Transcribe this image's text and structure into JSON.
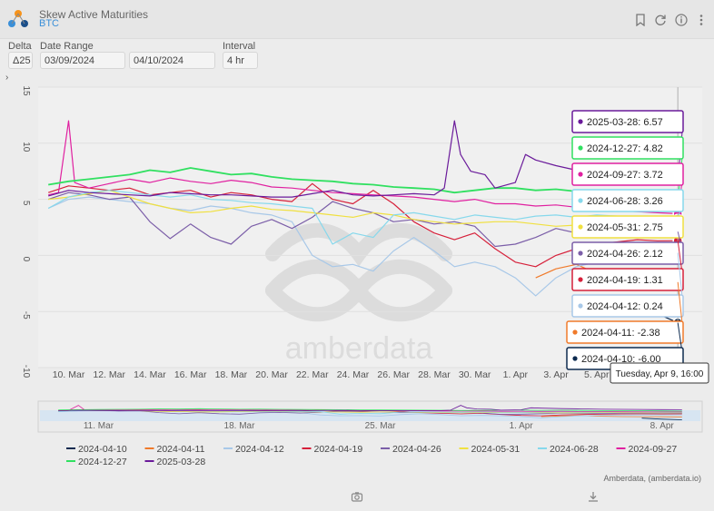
{
  "header": {
    "title": "Skew Active Maturities",
    "subtitle": "BTC"
  },
  "controls": {
    "delta_label": "Delta",
    "delta_value": "Δ25",
    "date_range_label": "Date Range",
    "start_date": "03/09/2024",
    "end_date": "04/10/2024",
    "interval_label": "Interval",
    "interval_value": "4 hr"
  },
  "footer": {
    "credit": "Amberdata, (amberdata.io)"
  },
  "watermark": "amberdata",
  "tooltip_time": "Tuesday, Apr 9, 16:00",
  "colors": {
    "2024-04-10": "#0d2a4f",
    "2024-04-11": "#f07a2a",
    "2024-04-12": "#a8c8e8",
    "2024-04-19": "#d6203a",
    "2024-04-26": "#7b5ea8",
    "2024-05-31": "#f0e040",
    "2024-06-28": "#86d8ec",
    "2024-09-27": "#e020a0",
    "2024-12-27": "#30e060",
    "2025-03-28": "#6a1a9a"
  },
  "chart_data": {
    "type": "line",
    "title": "",
    "xlabel": "",
    "ylabel": "",
    "ylim": [
      -10,
      15
    ],
    "yticks": [
      "15",
      "10",
      "5",
      "0",
      "-5",
      "-10"
    ],
    "xticks": [
      "10. Mar",
      "12. Mar",
      "14. Mar",
      "16. Mar",
      "18. Mar",
      "20. Mar",
      "22. Mar",
      "24. Mar",
      "26. Mar",
      "28. Mar",
      "30. Mar",
      "1. Apr",
      "3. Apr",
      "5. Apr"
    ],
    "navigator_ticks": [
      "11. Mar",
      "18. Mar",
      "25. Mar",
      "1. Apr",
      "8. Apr"
    ],
    "legend_position": "bottom",
    "series": [
      {
        "name": "2025-03-28",
        "color": "#6a1a9a",
        "last": 6.57,
        "label": "2025-03-28: 6.57",
        "points": [
          [
            9,
            5.3
          ],
          [
            10,
            5.8
          ],
          [
            11,
            5.6
          ],
          [
            12,
            5.5
          ],
          [
            13,
            5.4
          ],
          [
            14,
            5.3
          ],
          [
            15,
            5.6
          ],
          [
            16,
            5.5
          ],
          [
            17,
            5.4
          ],
          [
            18,
            5.4
          ],
          [
            19,
            5.3
          ],
          [
            20,
            5.2
          ],
          [
            21,
            5.2
          ],
          [
            22,
            5.5
          ],
          [
            23,
            5.8
          ],
          [
            24,
            5.4
          ],
          [
            25,
            5.3
          ],
          [
            26,
            5.4
          ],
          [
            27,
            5.5
          ],
          [
            28,
            5.4
          ],
          [
            28.5,
            6.0
          ],
          [
            29,
            12.0
          ],
          [
            29.3,
            9.0
          ],
          [
            29.8,
            7.5
          ],
          [
            30.5,
            7.2
          ],
          [
            31,
            6.0
          ],
          [
            32,
            6.5
          ],
          [
            32.5,
            9.0
          ],
          [
            33,
            8.5
          ],
          [
            34,
            8.0
          ],
          [
            35,
            7.6
          ],
          [
            36,
            7.2
          ],
          [
            37,
            7.0
          ],
          [
            38,
            6.9
          ],
          [
            39,
            6.7
          ],
          [
            40,
            6.57
          ]
        ]
      },
      {
        "name": "2024-12-27",
        "color": "#30e060",
        "last": 4.82,
        "label": "2024-12-27: 4.82",
        "points": [
          [
            9,
            6.3
          ],
          [
            10,
            6.6
          ],
          [
            11,
            6.8
          ],
          [
            12,
            7.0
          ],
          [
            13,
            7.2
          ],
          [
            14,
            7.6
          ],
          [
            15,
            7.4
          ],
          [
            16,
            7.8
          ],
          [
            17,
            7.5
          ],
          [
            18,
            7.2
          ],
          [
            19,
            7.3
          ],
          [
            20,
            7.0
          ],
          [
            21,
            6.8
          ],
          [
            22,
            6.7
          ],
          [
            23,
            6.6
          ],
          [
            24,
            6.4
          ],
          [
            25,
            6.3
          ],
          [
            26,
            6.1
          ],
          [
            27,
            6.0
          ],
          [
            28,
            5.9
          ],
          [
            29,
            5.6
          ],
          [
            30,
            5.8
          ],
          [
            31,
            6.0
          ],
          [
            32,
            6.0
          ],
          [
            33,
            5.8
          ],
          [
            34,
            5.9
          ],
          [
            35,
            5.7
          ],
          [
            36,
            5.5
          ],
          [
            37,
            5.4
          ],
          [
            38,
            5.3
          ],
          [
            39,
            5.0
          ],
          [
            40,
            4.82
          ]
        ]
      },
      {
        "name": "2024-09-27",
        "color": "#e020a0",
        "last": 3.72,
        "label": "2024-09-27: 3.72",
        "points": [
          [
            9,
            5.4
          ],
          [
            9.5,
            5.6
          ],
          [
            10,
            12.0
          ],
          [
            10.3,
            6.5
          ],
          [
            11,
            6.0
          ],
          [
            12,
            6.4
          ],
          [
            13,
            6.8
          ],
          [
            14,
            6.5
          ],
          [
            15,
            6.9
          ],
          [
            16,
            6.6
          ],
          [
            17,
            6.4
          ],
          [
            18,
            6.7
          ],
          [
            19,
            6.5
          ],
          [
            20,
            6.1
          ],
          [
            21,
            6.0
          ],
          [
            22,
            5.8
          ],
          [
            23,
            5.6
          ],
          [
            24,
            5.5
          ],
          [
            25,
            5.4
          ],
          [
            26,
            5.3
          ],
          [
            27,
            5.2
          ],
          [
            28,
            5.0
          ],
          [
            29,
            4.8
          ],
          [
            30,
            5.0
          ],
          [
            31,
            4.6
          ],
          [
            32,
            4.6
          ],
          [
            33,
            4.4
          ],
          [
            34,
            4.5
          ],
          [
            35,
            4.3
          ],
          [
            36,
            4.2
          ],
          [
            37,
            4.0
          ],
          [
            38,
            3.9
          ],
          [
            39,
            3.8
          ],
          [
            40,
            3.72
          ]
        ]
      },
      {
        "name": "2024-06-28",
        "color": "#86d8ec",
        "last": 3.26,
        "label": "2024-06-28: 3.26",
        "points": [
          [
            9,
            4.2
          ],
          [
            10,
            5.2
          ],
          [
            11,
            5.6
          ],
          [
            12,
            5.8
          ],
          [
            13,
            5.6
          ],
          [
            14,
            5.4
          ],
          [
            15,
            5.2
          ],
          [
            16,
            5.4
          ],
          [
            17,
            5.0
          ],
          [
            18,
            4.9
          ],
          [
            19,
            4.7
          ],
          [
            20,
            4.6
          ],
          [
            21,
            4.4
          ],
          [
            22,
            4.2
          ],
          [
            23,
            1.0
          ],
          [
            24,
            2.0
          ],
          [
            25,
            1.6
          ],
          [
            26,
            3.6
          ],
          [
            27,
            3.8
          ],
          [
            28,
            3.5
          ],
          [
            29,
            3.2
          ],
          [
            30,
            3.6
          ],
          [
            31,
            3.4
          ],
          [
            32,
            3.2
          ],
          [
            33,
            3.5
          ],
          [
            34,
            3.6
          ],
          [
            35,
            3.4
          ],
          [
            36,
            3.6
          ],
          [
            37,
            3.5
          ],
          [
            38,
            3.4
          ],
          [
            39,
            3.3
          ],
          [
            40,
            3.26
          ]
        ]
      },
      {
        "name": "2024-05-31",
        "color": "#f0e040",
        "last": 2.75,
        "label": "2024-05-31: 2.75",
        "points": [
          [
            9,
            5.0
          ],
          [
            10,
            5.2
          ],
          [
            11,
            5.5
          ],
          [
            12,
            5.8
          ],
          [
            13,
            5.2
          ],
          [
            14,
            4.6
          ],
          [
            15,
            4.2
          ],
          [
            16,
            3.8
          ],
          [
            17,
            3.9
          ],
          [
            18,
            4.2
          ],
          [
            19,
            4.4
          ],
          [
            20,
            4.1
          ],
          [
            21,
            4.0
          ],
          [
            22,
            3.8
          ],
          [
            23,
            3.6
          ],
          [
            24,
            3.4
          ],
          [
            25,
            3.8
          ],
          [
            26,
            3.6
          ],
          [
            27,
            3.2
          ],
          [
            28,
            3.0
          ],
          [
            29,
            2.8
          ],
          [
            30,
            2.9
          ],
          [
            31,
            3.0
          ],
          [
            32,
            3.0
          ],
          [
            33,
            2.8
          ],
          [
            34,
            2.6
          ],
          [
            35,
            2.7
          ],
          [
            36,
            2.9
          ],
          [
            37,
            2.8
          ],
          [
            38,
            2.6
          ],
          [
            39,
            2.7
          ],
          [
            40,
            2.75
          ]
        ]
      },
      {
        "name": "2024-04-26",
        "color": "#7b5ea8",
        "last": 2.12,
        "label": "2024-04-26: 2.12",
        "points": [
          [
            9,
            5.0
          ],
          [
            10,
            5.6
          ],
          [
            11,
            5.4
          ],
          [
            12,
            5.0
          ],
          [
            13,
            5.2
          ],
          [
            14,
            3.0
          ],
          [
            15,
            1.5
          ],
          [
            16,
            2.8
          ],
          [
            17,
            1.6
          ],
          [
            18,
            1.0
          ],
          [
            19,
            2.6
          ],
          [
            20,
            3.2
          ],
          [
            21,
            2.4
          ],
          [
            22,
            3.4
          ],
          [
            23,
            4.8
          ],
          [
            24,
            4.2
          ],
          [
            25,
            3.8
          ],
          [
            26,
            3.0
          ],
          [
            27,
            3.2
          ],
          [
            28,
            2.8
          ],
          [
            29,
            3.0
          ],
          [
            30,
            2.6
          ],
          [
            31,
            0.8
          ],
          [
            32,
            1.0
          ],
          [
            33,
            1.6
          ],
          [
            34,
            2.4
          ],
          [
            35,
            2.0
          ],
          [
            36,
            1.8
          ],
          [
            37,
            2.2
          ],
          [
            38,
            2.0
          ],
          [
            39,
            2.3
          ],
          [
            40,
            2.12
          ]
        ]
      },
      {
        "name": "2024-04-19",
        "color": "#d6203a",
        "last": 1.31,
        "label": "2024-04-19: 1.31",
        "points": [
          [
            9,
            5.6
          ],
          [
            10,
            6.2
          ],
          [
            11,
            6.0
          ],
          [
            12,
            5.8
          ],
          [
            13,
            6.0
          ],
          [
            14,
            5.4
          ],
          [
            15,
            5.6
          ],
          [
            16,
            5.8
          ],
          [
            17,
            5.2
          ],
          [
            18,
            5.6
          ],
          [
            19,
            5.4
          ],
          [
            20,
            5.0
          ],
          [
            21,
            4.8
          ],
          [
            22,
            6.4
          ],
          [
            23,
            5.0
          ],
          [
            24,
            4.6
          ],
          [
            25,
            5.8
          ],
          [
            26,
            4.6
          ],
          [
            27,
            3.0
          ],
          [
            28,
            2.0
          ],
          [
            29,
            1.4
          ],
          [
            30,
            2.0
          ],
          [
            31,
            0.6
          ],
          [
            32,
            -0.6
          ],
          [
            33,
            -1.0
          ],
          [
            34,
            0.0
          ],
          [
            35,
            0.6
          ],
          [
            36,
            1.0
          ],
          [
            37,
            1.2
          ],
          [
            38,
            1.4
          ],
          [
            39,
            1.3
          ],
          [
            40,
            1.31
          ]
        ]
      },
      {
        "name": "2024-04-12",
        "color": "#a8c8e8",
        "last": 0.24,
        "label": "2024-04-12: 0.24",
        "points": [
          [
            9,
            4.2
          ],
          [
            10,
            5.0
          ],
          [
            11,
            5.2
          ],
          [
            12,
            5.0
          ],
          [
            13,
            4.8
          ],
          [
            14,
            4.6
          ],
          [
            15,
            4.2
          ],
          [
            16,
            4.0
          ],
          [
            17,
            4.4
          ],
          [
            18,
            4.2
          ],
          [
            19,
            3.8
          ],
          [
            20,
            3.6
          ],
          [
            21,
            3.0
          ],
          [
            22,
            0.0
          ],
          [
            23,
            -1.0
          ],
          [
            24,
            -0.8
          ],
          [
            25,
            -1.4
          ],
          [
            26,
            0.4
          ],
          [
            27,
            1.6
          ],
          [
            28,
            0.4
          ],
          [
            29,
            -1.0
          ],
          [
            30,
            -0.6
          ],
          [
            31,
            -1.0
          ],
          [
            32,
            -2.0
          ],
          [
            33,
            -3.6
          ],
          [
            34,
            -2.0
          ],
          [
            35,
            -1.0
          ],
          [
            36,
            -0.6
          ],
          [
            37,
            -0.2
          ],
          [
            38,
            0.0
          ],
          [
            39,
            0.1
          ],
          [
            40,
            0.24
          ]
        ]
      },
      {
        "name": "2024-04-11",
        "color": "#f07a2a",
        "last": -2.38,
        "label": "2024-04-11: -2.38",
        "points": [
          [
            33,
            -2.0
          ],
          [
            34,
            -1.2
          ],
          [
            35,
            -0.8
          ],
          [
            36,
            -1.6
          ],
          [
            37,
            -2.0
          ],
          [
            38,
            -2.2
          ],
          [
            39,
            -2.3
          ],
          [
            40,
            -2.38
          ]
        ]
      },
      {
        "name": "2024-04-10",
        "color": "#0d2a4f",
        "last": -6.0,
        "label": "2024-04-10: -6.00",
        "points": [
          [
            38,
            -4.0
          ],
          [
            39,
            -5.2
          ],
          [
            40,
            -6.0
          ]
        ]
      }
    ]
  }
}
